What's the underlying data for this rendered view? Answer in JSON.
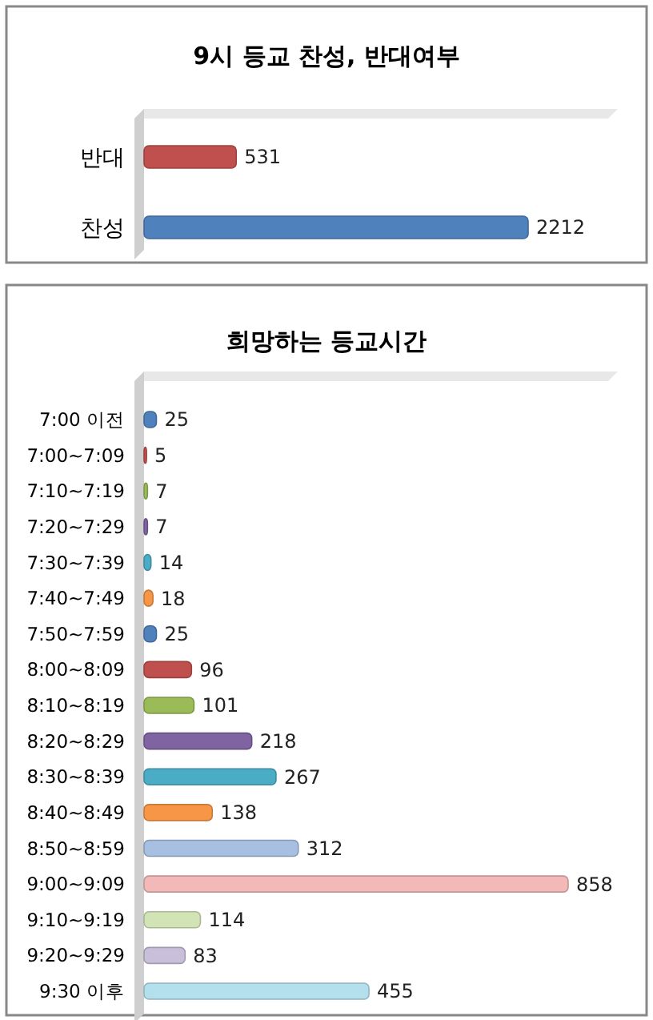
{
  "chart_data": [
    {
      "type": "bar",
      "title": "9시 등교 찬성, 반대여부",
      "orientation": "horizontal",
      "categories": [
        "반대",
        "찬성"
      ],
      "values": [
        531,
        2212
      ],
      "colors": [
        "#c0504d",
        "#4f81bd"
      ],
      "data_labels": true
    },
    {
      "type": "bar",
      "title": "희망하는 등교시간",
      "orientation": "horizontal",
      "categories": [
        "7:00 이전",
        "7:00~7:09",
        "7:10~7:19",
        "7:20~7:29",
        "7:30~7:39",
        "7:40~7:49",
        "7:50~7:59",
        "8:00~8:09",
        "8:10~8:19",
        "8:20~8:29",
        "8:30~8:39",
        "8:40~8:49",
        "8:50~8:59",
        "9:00~9:09",
        "9:10~9:19",
        "9:20~9:29",
        "9:30 이후"
      ],
      "values": [
        25,
        5,
        7,
        7,
        14,
        18,
        25,
        96,
        101,
        218,
        267,
        138,
        312,
        858,
        114,
        83,
        455
      ],
      "colors": [
        "#4f81bd",
        "#c0504d",
        "#9bbb59",
        "#8064a2",
        "#4bacc6",
        "#f79646",
        "#4f81bd",
        "#c0504d",
        "#9bbb59",
        "#8064a2",
        "#4bacc6",
        "#f79646",
        "#a7bfe0",
        "#f2b9b8",
        "#d2e3b5",
        "#c9bfdb",
        "#b3e0ec"
      ],
      "data_labels": true
    }
  ]
}
